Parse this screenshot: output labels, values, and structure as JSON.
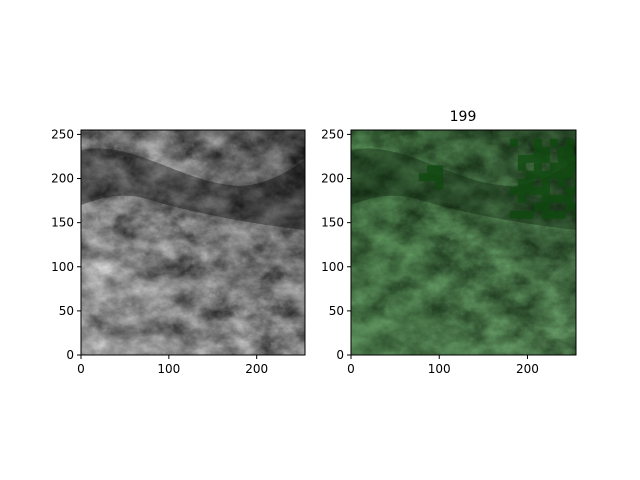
{
  "figure": {
    "background": "#ffffff"
  },
  "chart_data": [
    {
      "type": "image",
      "panel": "left",
      "title": "",
      "image_extent": {
        "x": [
          0,
          255
        ],
        "y": [
          0,
          255
        ]
      },
      "xlim": [
        0,
        255
      ],
      "ylim": [
        0,
        255
      ],
      "xticks": [
        0,
        100,
        200
      ],
      "yticks": [
        0,
        50,
        100,
        150,
        200,
        250
      ],
      "origin": "lower",
      "colormap": "gray",
      "content": "grayscale satellite cloud imagery",
      "colors": {
        "dark": "#141414",
        "mid": "#6e6e6e",
        "light": "#e6e6e6"
      }
    },
    {
      "type": "image",
      "panel": "right",
      "title": "199",
      "image_extent": {
        "x": [
          0,
          255
        ],
        "y": [
          0,
          255
        ]
      },
      "xlim": [
        0,
        255
      ],
      "ylim": [
        0,
        255
      ],
      "xticks": [
        0,
        100,
        200
      ],
      "yticks": [
        0,
        50,
        100,
        150,
        200,
        250
      ],
      "origin": "lower",
      "colormap": "gray with green mask overlay",
      "content": "same cloud imagery with a semi-transparent green overlay; blocky dark-green patches in the upper right",
      "colors": {
        "overlay": "#1f8a1f",
        "patch": "#0e4a0e",
        "base_dark": "#0e1a0e"
      },
      "mask_patches": [
        {
          "x": [
            180,
            255
          ],
          "y": [
            160,
            245
          ],
          "label": "block cluster"
        },
        {
          "x": [
            77,
            97
          ],
          "y": [
            192,
            215
          ],
          "label": "small block"
        }
      ]
    }
  ]
}
